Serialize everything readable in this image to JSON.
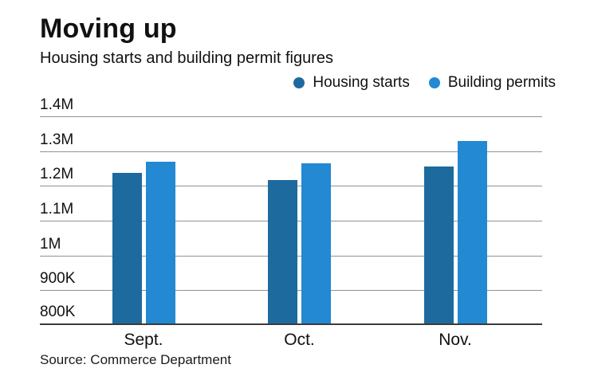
{
  "header": {
    "title": "Moving up",
    "subtitle": "Housing starts and building permit figures"
  },
  "chart_data": {
    "type": "bar",
    "title": "Moving up",
    "subtitle": "Housing starts and building permit figures",
    "categories": [
      "Sept.",
      "Oct.",
      "Nov."
    ],
    "series": [
      {
        "name": "Housing starts",
        "color": "#1d6a9e",
        "values": [
          1237000,
          1217000,
          1256000
        ]
      },
      {
        "name": "Building permits",
        "color": "#2289d2",
        "values": [
          1270000,
          1265000,
          1328000
        ]
      }
    ],
    "ylim": [
      800000,
      1400000
    ],
    "yticks": [
      {
        "label": "1.4M",
        "value": 1400000
      },
      {
        "label": "1.3M",
        "value": 1300000
      },
      {
        "label": "1.2M",
        "value": 1200000
      },
      {
        "label": "1.1M",
        "value": 1100000
      },
      {
        "label": "1M",
        "value": 1000000
      },
      {
        "label": "900K",
        "value": 900000
      },
      {
        "label": "800K",
        "value": 800000
      }
    ],
    "grid": true,
    "legend_position": "top-right",
    "source": "Source: Commerce Department"
  }
}
